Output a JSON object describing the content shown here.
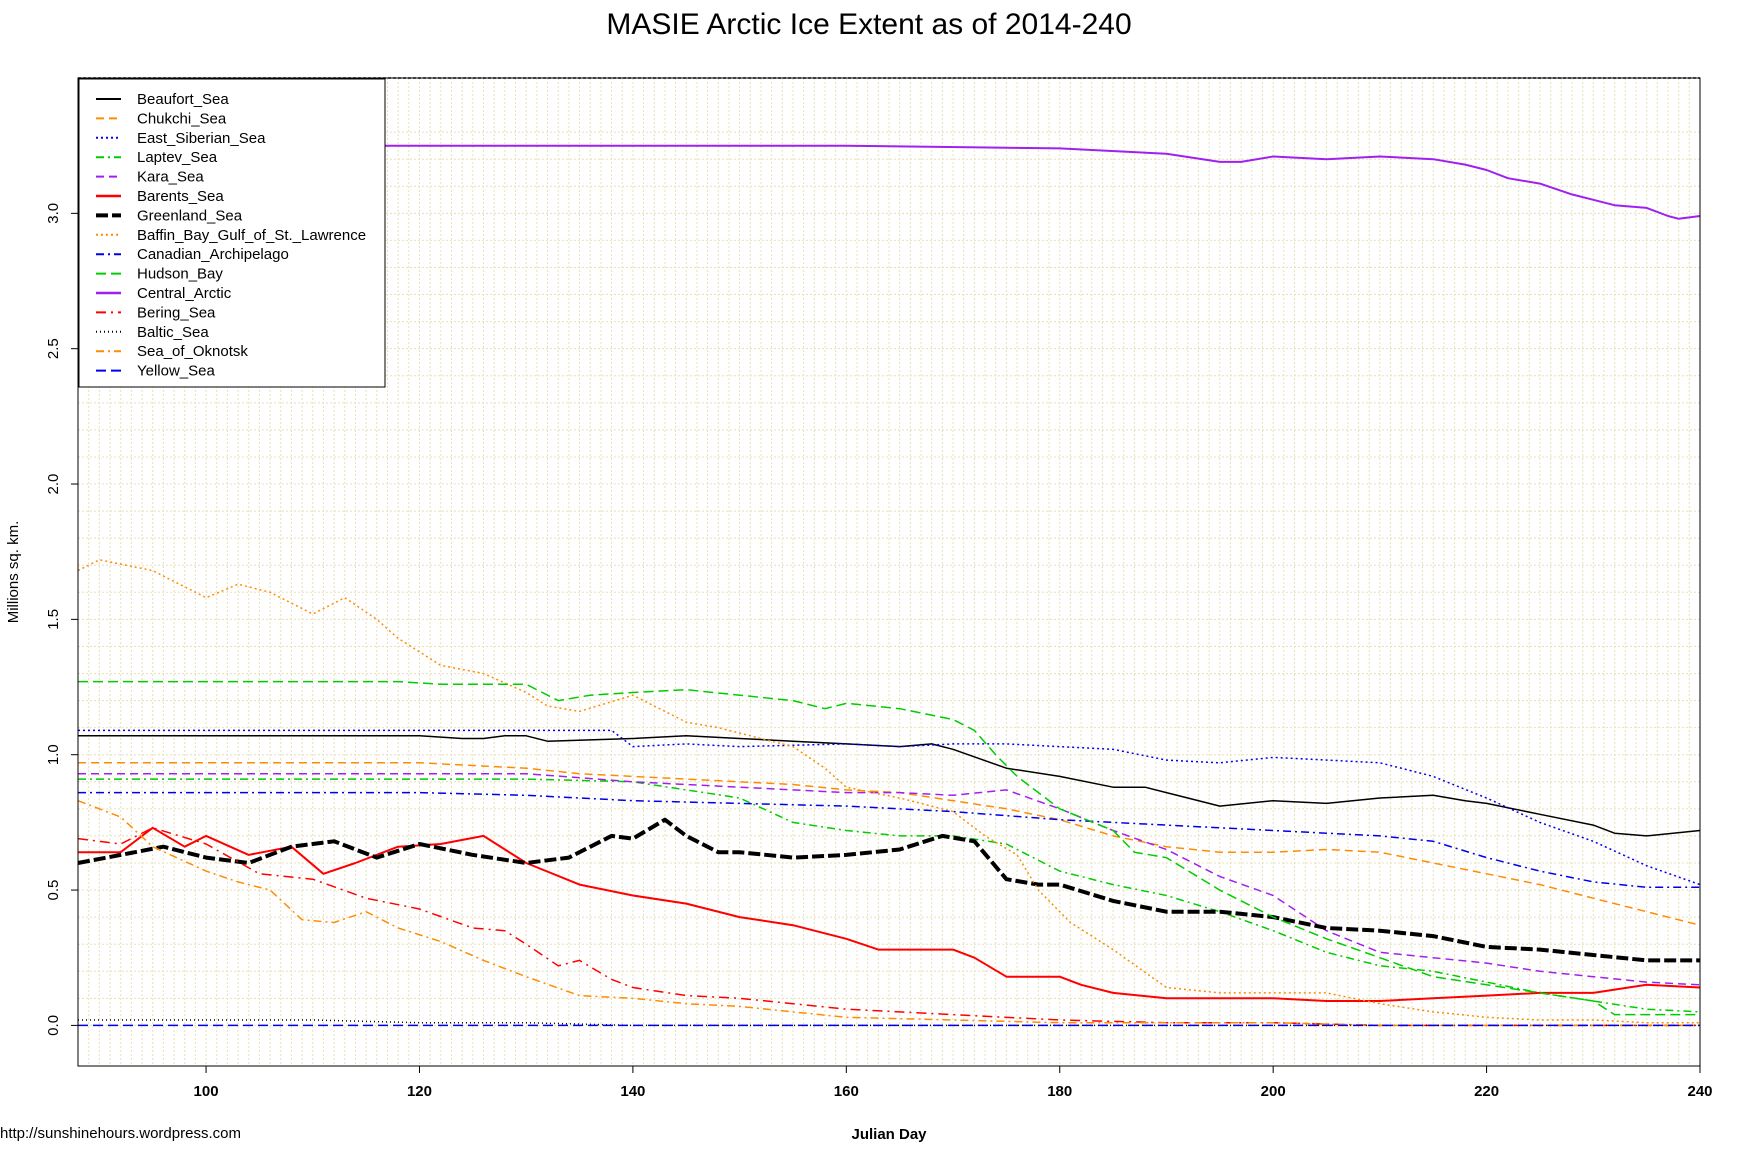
{
  "chart_data": {
    "type": "line",
    "title": "MASIE Arctic Ice Extent as of 2014-240",
    "xlabel": "Julian Day",
    "ylabel": "Millions sq. km.",
    "source": "http://sunshinehours.wordpress.com",
    "xlim": [
      88,
      240
    ],
    "ylim": [
      -0.15,
      3.5
    ],
    "x_ticks": [
      100,
      120,
      140,
      160,
      180,
      200,
      220,
      240
    ],
    "y_ticks": [
      0.0,
      0.5,
      1.0,
      1.5,
      2.0,
      2.5,
      3.0
    ],
    "y_tick_labels": [
      "0.0",
      "0.5",
      "1.0",
      "1.5",
      "2.0",
      "2.5",
      "3.0"
    ],
    "grid": true,
    "legend_position": "top-left",
    "series": [
      {
        "name": "Beaufort_Sea",
        "color": "#000000",
        "dash": "solid",
        "width": 1.5,
        "x": [
          88,
          100,
          110,
          120,
          124,
          126,
          128,
          130,
          132,
          140,
          145,
          150,
          155,
          160,
          165,
          168,
          170,
          175,
          180,
          185,
          188,
          190,
          192,
          195,
          200,
          205,
          210,
          215,
          218,
          220,
          225,
          230,
          232,
          235,
          240
        ],
        "y": [
          1.07,
          1.07,
          1.07,
          1.07,
          1.06,
          1.06,
          1.07,
          1.07,
          1.05,
          1.06,
          1.07,
          1.06,
          1.05,
          1.04,
          1.03,
          1.04,
          1.02,
          0.95,
          0.92,
          0.88,
          0.88,
          0.86,
          0.84,
          0.81,
          0.83,
          0.82,
          0.84,
          0.85,
          0.83,
          0.82,
          0.78,
          0.74,
          0.71,
          0.7,
          0.72
        ]
      },
      {
        "name": "Chukchi_Sea",
        "color": "#ff8c00",
        "dash": "8,5",
        "width": 1.5,
        "x": [
          88,
          100,
          110,
          120,
          125,
          130,
          135,
          140,
          145,
          150,
          155,
          160,
          165,
          170,
          175,
          180,
          185,
          190,
          195,
          200,
          205,
          210,
          215,
          220,
          225,
          230,
          235,
          240
        ],
        "y": [
          0.97,
          0.97,
          0.97,
          0.97,
          0.96,
          0.95,
          0.93,
          0.92,
          0.91,
          0.9,
          0.89,
          0.87,
          0.86,
          0.83,
          0.8,
          0.76,
          0.7,
          0.66,
          0.64,
          0.64,
          0.65,
          0.64,
          0.6,
          0.56,
          0.52,
          0.47,
          0.42,
          0.37
        ]
      },
      {
        "name": "East_Siberian_Sea",
        "color": "#0000ee",
        "dash": "2,3",
        "width": 1.5,
        "x": [
          88,
          100,
          110,
          120,
          130,
          138,
          140,
          145,
          150,
          160,
          165,
          170,
          175,
          180,
          185,
          190,
          195,
          200,
          205,
          210,
          215,
          220,
          225,
          230,
          235,
          240
        ],
        "y": [
          1.09,
          1.09,
          1.09,
          1.09,
          1.09,
          1.09,
          1.03,
          1.04,
          1.03,
          1.04,
          1.03,
          1.04,
          1.04,
          1.03,
          1.02,
          0.98,
          0.97,
          0.99,
          0.98,
          0.97,
          0.92,
          0.84,
          0.75,
          0.68,
          0.59,
          0.52
        ]
      },
      {
        "name": "Laptev_Sea",
        "color": "#00cc00",
        "dash": "8,4,2,4",
        "width": 1.5,
        "x": [
          88,
          100,
          110,
          120,
          130,
          140,
          150,
          155,
          160,
          165,
          170,
          175,
          180,
          185,
          190,
          195,
          200,
          205,
          210,
          215,
          220,
          225,
          230,
          235,
          240
        ],
        "y": [
          0.91,
          0.91,
          0.91,
          0.91,
          0.91,
          0.9,
          0.84,
          0.75,
          0.72,
          0.7,
          0.7,
          0.67,
          0.57,
          0.52,
          0.48,
          0.42,
          0.35,
          0.27,
          0.22,
          0.2,
          0.16,
          0.12,
          0.09,
          0.06,
          0.05
        ]
      },
      {
        "name": "Kara_Sea",
        "color": "#a020f0",
        "dash": "8,5",
        "width": 1.5,
        "x": [
          88,
          100,
          110,
          120,
          130,
          140,
          150,
          155,
          160,
          165,
          170,
          175,
          180,
          185,
          190,
          195,
          200,
          205,
          210,
          215,
          220,
          225,
          230,
          235,
          240
        ],
        "y": [
          0.93,
          0.93,
          0.93,
          0.93,
          0.93,
          0.9,
          0.88,
          0.87,
          0.86,
          0.86,
          0.85,
          0.87,
          0.8,
          0.72,
          0.65,
          0.55,
          0.48,
          0.35,
          0.27,
          0.25,
          0.23,
          0.2,
          0.18,
          0.16,
          0.15
        ]
      },
      {
        "name": "Barents_Sea",
        "color": "#ff0000",
        "dash": "solid",
        "width": 2,
        "x": [
          88,
          92,
          95,
          98,
          100,
          104,
          108,
          111,
          114,
          118,
          122,
          126,
          130,
          135,
          140,
          145,
          150,
          155,
          160,
          163,
          165,
          170,
          172,
          175,
          180,
          182,
          185,
          190,
          195,
          200,
          205,
          210,
          215,
          220,
          225,
          230,
          235,
          240
        ],
        "y": [
          0.64,
          0.64,
          0.73,
          0.66,
          0.7,
          0.63,
          0.66,
          0.56,
          0.6,
          0.66,
          0.67,
          0.7,
          0.6,
          0.52,
          0.48,
          0.45,
          0.4,
          0.37,
          0.32,
          0.28,
          0.28,
          0.28,
          0.25,
          0.18,
          0.18,
          0.15,
          0.12,
          0.1,
          0.1,
          0.1,
          0.09,
          0.09,
          0.1,
          0.11,
          0.12,
          0.12,
          0.15,
          0.14
        ]
      },
      {
        "name": "Greenland_Sea",
        "color": "#000000",
        "dash": "12,4",
        "width": 4,
        "x": [
          88,
          92,
          96,
          100,
          104,
          108,
          112,
          116,
          120,
          125,
          130,
          134,
          138,
          140,
          143,
          145,
          148,
          150,
          155,
          160,
          165,
          169,
          172,
          175,
          178,
          180,
          185,
          190,
          195,
          200,
          205,
          210,
          215,
          220,
          225,
          230,
          235,
          240
        ],
        "y": [
          0.6,
          0.63,
          0.66,
          0.62,
          0.6,
          0.66,
          0.68,
          0.62,
          0.67,
          0.63,
          0.6,
          0.62,
          0.7,
          0.69,
          0.76,
          0.7,
          0.64,
          0.64,
          0.62,
          0.63,
          0.65,
          0.7,
          0.68,
          0.54,
          0.52,
          0.52,
          0.46,
          0.42,
          0.42,
          0.4,
          0.36,
          0.35,
          0.33,
          0.29,
          0.28,
          0.26,
          0.24,
          0.24
        ]
      },
      {
        "name": "Baffin_Bay_Gulf_of_St._Lawrence",
        "color": "#ff8c00",
        "dash": "2,3",
        "width": 1.5,
        "x": [
          88,
          90,
          95,
          100,
          103,
          106,
          110,
          113,
          116,
          118,
          122,
          126,
          130,
          132,
          135,
          140,
          142,
          145,
          148,
          150,
          152,
          155,
          158,
          160,
          165,
          170,
          173,
          176,
          178,
          181,
          185,
          190,
          195,
          200,
          205,
          210,
          215,
          220,
          225,
          230,
          235,
          240
        ],
        "y": [
          1.68,
          1.72,
          1.68,
          1.58,
          1.63,
          1.6,
          1.52,
          1.58,
          1.5,
          1.43,
          1.33,
          1.3,
          1.23,
          1.18,
          1.16,
          1.22,
          1.18,
          1.12,
          1.1,
          1.08,
          1.06,
          1.03,
          0.95,
          0.88,
          0.84,
          0.79,
          0.7,
          0.63,
          0.5,
          0.38,
          0.28,
          0.14,
          0.12,
          0.12,
          0.12,
          0.08,
          0.05,
          0.03,
          0.02,
          0.02,
          0.01,
          0.01
        ]
      },
      {
        "name": "Canadian_Archipelago",
        "color": "#0000ee",
        "dash": "8,4,2,4",
        "width": 1.5,
        "x": [
          88,
          100,
          110,
          120,
          130,
          135,
          140,
          150,
          160,
          170,
          180,
          185,
          190,
          200,
          210,
          215,
          220,
          225,
          230,
          235,
          240
        ],
        "y": [
          0.86,
          0.86,
          0.86,
          0.86,
          0.85,
          0.84,
          0.83,
          0.82,
          0.81,
          0.79,
          0.76,
          0.75,
          0.74,
          0.72,
          0.7,
          0.68,
          0.62,
          0.57,
          0.53,
          0.51,
          0.51
        ]
      },
      {
        "name": "Hudson_Bay",
        "color": "#00cc00",
        "dash": "10,5",
        "width": 1.5,
        "x": [
          88,
          100,
          110,
          118,
          122,
          126,
          130,
          133,
          136,
          140,
          145,
          150,
          155,
          158,
          160,
          165,
          170,
          172,
          174,
          176,
          180,
          185,
          187,
          190,
          195,
          200,
          205,
          210,
          215,
          220,
          225,
          230,
          232,
          235,
          240
        ],
        "y": [
          1.27,
          1.27,
          1.27,
          1.27,
          1.26,
          1.26,
          1.26,
          1.2,
          1.22,
          1.23,
          1.24,
          1.22,
          1.2,
          1.17,
          1.19,
          1.17,
          1.13,
          1.09,
          1.0,
          0.92,
          0.8,
          0.72,
          0.64,
          0.62,
          0.5,
          0.4,
          0.32,
          0.25,
          0.18,
          0.15,
          0.12,
          0.09,
          0.04,
          0.04,
          0.04
        ]
      },
      {
        "name": "Central_Arctic",
        "color": "#a020f0",
        "dash": "solid",
        "width": 2,
        "x": [
          88,
          92,
          100,
          120,
          140,
          160,
          180,
          190,
          195,
          197,
          200,
          205,
          210,
          215,
          218,
          220,
          222,
          225,
          228,
          230,
          232,
          235,
          237,
          238,
          240
        ],
        "y": [
          3.24,
          3.25,
          3.25,
          3.25,
          3.25,
          3.25,
          3.24,
          3.22,
          3.19,
          3.19,
          3.21,
          3.2,
          3.21,
          3.2,
          3.18,
          3.16,
          3.13,
          3.11,
          3.07,
          3.05,
          3.03,
          3.02,
          2.99,
          2.98,
          2.99
        ]
      },
      {
        "name": "Bering_Sea",
        "color": "#ff0000",
        "dash": "10,5,2,5",
        "width": 1.5,
        "x": [
          88,
          92,
          95,
          100,
          105,
          110,
          115,
          120,
          125,
          128,
          130,
          133,
          135,
          138,
          140,
          145,
          150,
          155,
          160,
          170,
          180,
          190,
          200,
          210,
          220,
          230,
          240
        ],
        "y": [
          0.69,
          0.67,
          0.73,
          0.67,
          0.56,
          0.54,
          0.47,
          0.43,
          0.36,
          0.35,
          0.3,
          0.22,
          0.24,
          0.17,
          0.14,
          0.11,
          0.1,
          0.08,
          0.06,
          0.04,
          0.02,
          0.01,
          0.01,
          0.0,
          0.0,
          0.0,
          0.0
        ]
      },
      {
        "name": "Baltic_Sea",
        "color": "#000000",
        "dash": "1,3",
        "width": 1.5,
        "x": [
          88,
          100,
          110,
          120,
          130,
          140,
          160,
          180,
          200,
          220,
          240
        ],
        "y": [
          0.02,
          0.02,
          0.02,
          0.01,
          0.01,
          0.0,
          0.0,
          0.0,
          0.0,
          0.0,
          0.0
        ]
      },
      {
        "name": "Sea_of_Oknotsk",
        "color": "#ff8c00",
        "dash": "8,4,2,4",
        "width": 1.5,
        "x": [
          88,
          92,
          95,
          100,
          103,
          106,
          109,
          112,
          115,
          118,
          122,
          126,
          130,
          135,
          140,
          145,
          150,
          155,
          160,
          170,
          180,
          190,
          200,
          210,
          220,
          230,
          240
        ],
        "y": [
          0.83,
          0.77,
          0.66,
          0.57,
          0.53,
          0.5,
          0.39,
          0.38,
          0.42,
          0.36,
          0.31,
          0.24,
          0.18,
          0.11,
          0.1,
          0.08,
          0.07,
          0.05,
          0.03,
          0.02,
          0.01,
          0.01,
          0.01,
          0.0,
          0.0,
          0.0,
          0.0
        ]
      },
      {
        "name": "Yellow_Sea",
        "color": "#0000ee",
        "dash": "10,5",
        "width": 1.5,
        "x": [
          88,
          100,
          120,
          140,
          160,
          180,
          200,
          220,
          240
        ],
        "y": [
          0.0,
          0.0,
          0.0,
          0.0,
          0.0,
          0.0,
          0.0,
          0.0,
          0.0
        ]
      }
    ]
  }
}
